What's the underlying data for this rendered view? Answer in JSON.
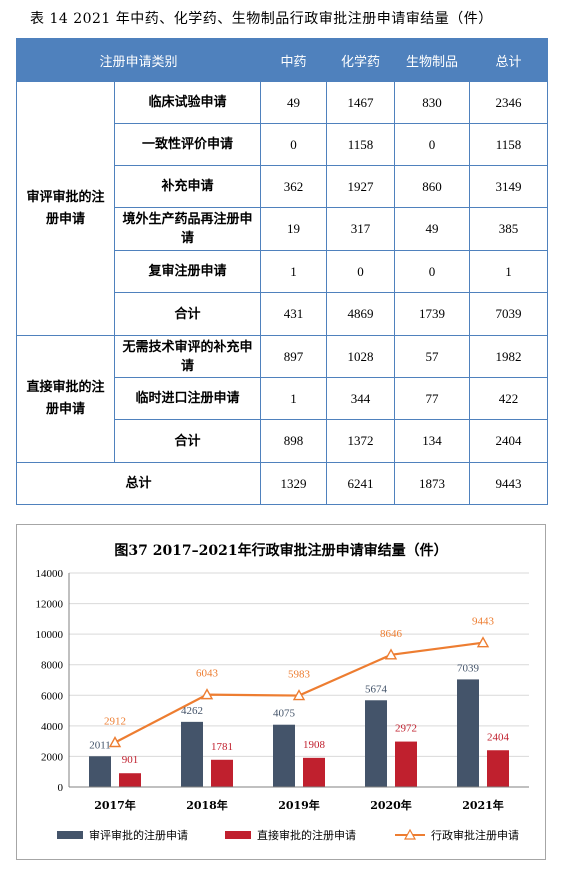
{
  "table_caption": "表 14  2021 年中药、化学药、生物制品行政审批注册申请审结量（件）",
  "table": {
    "headers": [
      "注册申请类别",
      "中药",
      "化学药",
      "生物制品",
      "总计"
    ],
    "groups": [
      {
        "name": "审评审批的注册申请",
        "rows": [
          {
            "label": "临床试验申请",
            "values": [
              "49",
              "1467",
              "830",
              "2346"
            ]
          },
          {
            "label": "一致性评价申请",
            "values": [
              "0",
              "1158",
              "0",
              "1158"
            ]
          },
          {
            "label": "补充申请",
            "values": [
              "362",
              "1927",
              "860",
              "3149"
            ]
          },
          {
            "label": "境外生产药品再注册申请",
            "values": [
              "19",
              "317",
              "49",
              "385"
            ]
          },
          {
            "label": "复审注册申请",
            "values": [
              "1",
              "0",
              "0",
              "1"
            ]
          },
          {
            "label": "合计",
            "values": [
              "431",
              "4869",
              "1739",
              "7039"
            ]
          }
        ]
      },
      {
        "name": "直接审批的注册申请",
        "rows": [
          {
            "label": "无需技术审评的补充申请",
            "values": [
              "897",
              "1028",
              "57",
              "1982"
            ]
          },
          {
            "label": "临时进口注册申请",
            "values": [
              "1",
              "344",
              "77",
              "422"
            ]
          },
          {
            "label": "合计",
            "values": [
              "898",
              "1372",
              "134",
              "2404"
            ]
          }
        ]
      }
    ],
    "total": {
      "label": "总计",
      "values": [
        "1329",
        "6241",
        "1873",
        "9443"
      ]
    }
  },
  "colors": {
    "header_bg": "#4f81bd",
    "bar1": "#44546a",
    "bar2": "#c0202e",
    "line": "#ed7d31"
  },
  "chart_data": {
    "type": "bar",
    "title": "图37  2017–2021年行政审批注册申请审结量（件）",
    "categories": [
      "2017年",
      "2018年",
      "2019年",
      "2020年",
      "2021年"
    ],
    "series": [
      {
        "name": "审评审批的注册申请",
        "kind": "bar",
        "values": [
          2011,
          4262,
          4075,
          5674,
          7039
        ]
      },
      {
        "name": "直接审批的注册申请",
        "kind": "bar",
        "values": [
          901,
          1781,
          1908,
          2972,
          2404
        ]
      },
      {
        "name": "行政审批注册申请",
        "kind": "line",
        "values": [
          2912,
          6043,
          5983,
          8646,
          9443
        ]
      }
    ],
    "ylim": [
      0,
      14000
    ],
    "yticks": [
      0,
      2000,
      4000,
      6000,
      8000,
      10000,
      12000,
      14000
    ],
    "grid": true,
    "legend": "bottom"
  }
}
